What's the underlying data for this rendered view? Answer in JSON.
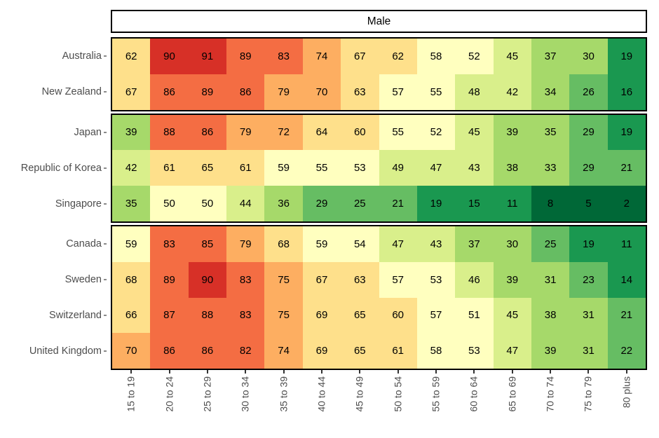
{
  "strip": {
    "label": "Male"
  },
  "chart_data": {
    "type": "heatmap",
    "facet_title": "Male",
    "x_categories": [
      "15 to 19",
      "20 to 24",
      "25 to 29",
      "30 to 34",
      "35 to 39",
      "40 to 44",
      "45 to 49",
      "50 to 54",
      "55 to 59",
      "60 to 64",
      "65 to 69",
      "70 to 74",
      "75 to 79",
      "80 plus"
    ],
    "row_groups": [
      {
        "rows": [
          {
            "label": "Australia",
            "values": [
              62,
              90,
              91,
              89,
              83,
              74,
              67,
              62,
              58,
              52,
              45,
              37,
              30,
              19
            ]
          },
          {
            "label": "New Zealand",
            "values": [
              67,
              86,
              89,
              86,
              79,
              70,
              63,
              57,
              55,
              48,
              42,
              34,
              26,
              16
            ]
          }
        ]
      },
      {
        "rows": [
          {
            "label": "Japan",
            "values": [
              39,
              88,
              86,
              79,
              72,
              64,
              60,
              55,
              52,
              45,
              39,
              35,
              29,
              19
            ]
          },
          {
            "label": "Republic of Korea",
            "values": [
              42,
              61,
              65,
              61,
              59,
              55,
              53,
              49,
              47,
              43,
              38,
              33,
              29,
              21
            ]
          },
          {
            "label": "Singapore",
            "values": [
              35,
              50,
              50,
              44,
              36,
              29,
              25,
              21,
              19,
              15,
              11,
              8,
              5,
              2
            ]
          }
        ]
      },
      {
        "rows": [
          {
            "label": "Canada",
            "values": [
              59,
              83,
              85,
              79,
              68,
              59,
              54,
              47,
              43,
              37,
              30,
              25,
              19,
              11
            ]
          },
          {
            "label": "Sweden",
            "values": [
              68,
              89,
              90,
              83,
              75,
              67,
              63,
              57,
              53,
              46,
              39,
              31,
              23,
              14
            ]
          },
          {
            "label": "Switzerland",
            "values": [
              66,
              87,
              88,
              83,
              75,
              69,
              65,
              60,
              57,
              51,
              45,
              38,
              31,
              21
            ]
          },
          {
            "label": "United Kingdom",
            "values": [
              70,
              86,
              86,
              82,
              74,
              69,
              65,
              61,
              58,
              53,
              47,
              39,
              31,
              22
            ]
          }
        ]
      }
    ],
    "color_mapping": "cell fill = palette_low_to_high[floor(value/10)]",
    "palette_low_to_high": [
      "#006837",
      "#1a9850",
      "#66bd63",
      "#a6d96a",
      "#d9ef8b",
      "#ffffbf",
      "#fee08b",
      "#fdae61",
      "#f46d43",
      "#d73027",
      "#a50026"
    ],
    "colors": {
      "background": "#ffffff",
      "panel_border": "#000000",
      "cell_text": "#000000",
      "axis_text": "#4d4d4d",
      "tick": "#333333"
    },
    "legend_position": "none",
    "grid": "off"
  }
}
